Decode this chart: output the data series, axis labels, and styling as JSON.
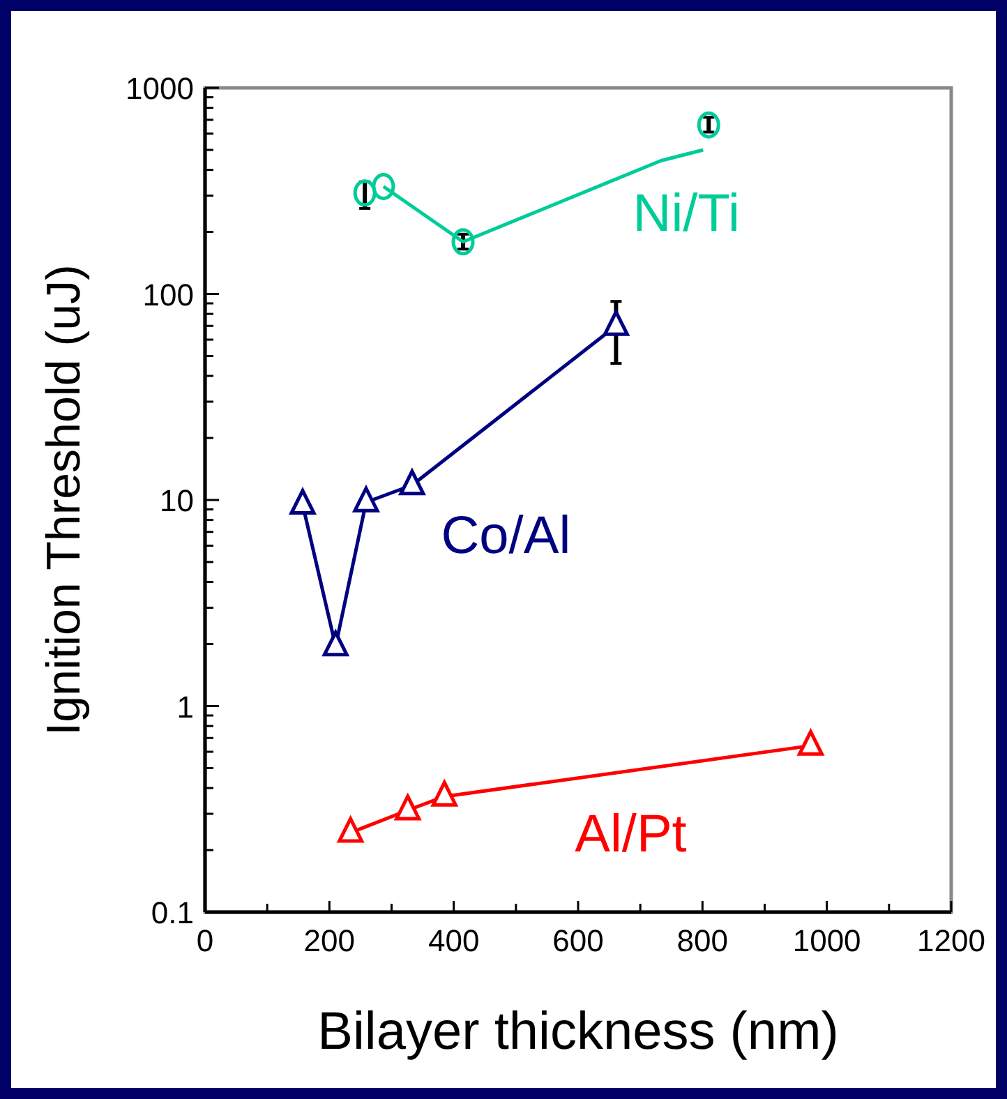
{
  "chart_data": {
    "type": "line",
    "xlabel": "Bilayer thickness (nm)",
    "ylabel": "Ignition Threshold (uJ)",
    "log": "y",
    "xlim": [
      0,
      1200
    ],
    "ylim": [
      0.1,
      1000
    ],
    "xticks": [
      0,
      {
        "value": 100,
        "label": null
      },
      200,
      {
        "value": 300,
        "label": null
      },
      400,
      {
        "value": 500,
        "label": null
      },
      600,
      {
        "value": 700,
        "label": null
      },
      800,
      {
        "value": 900,
        "label": null
      },
      1000,
      {
        "value": 1100,
        "label": null
      },
      1200
    ],
    "yticks": [
      0.1,
      {
        "value": 0.2,
        "label": null
      },
      {
        "value": 0.3,
        "label": null
      },
      {
        "value": 0.4,
        "label": null
      },
      {
        "value": 0.5,
        "label": null
      },
      {
        "value": 0.6,
        "label": null
      },
      {
        "value": 0.7,
        "label": null
      },
      {
        "value": 0.8,
        "label": null
      },
      {
        "value": 0.9,
        "label": null
      },
      1,
      {
        "value": 2,
        "label": null
      },
      {
        "value": 3,
        "label": null
      },
      {
        "value": 4,
        "label": null
      },
      {
        "value": 5,
        "label": null
      },
      {
        "value": 6,
        "label": null
      },
      {
        "value": 7,
        "label": null
      },
      {
        "value": 8,
        "label": null
      },
      {
        "value": 9,
        "label": null
      },
      10,
      {
        "value": 20,
        "label": null
      },
      {
        "value": 30,
        "label": null
      },
      {
        "value": 40,
        "label": null
      },
      {
        "value": 50,
        "label": null
      },
      {
        "value": 60,
        "label": null
      },
      {
        "value": 70,
        "label": null
      },
      {
        "value": 80,
        "label": null
      },
      {
        "value": 90,
        "label": null
      },
      100,
      {
        "value": 200,
        "label": null
      },
      {
        "value": 300,
        "label": null
      },
      {
        "value": 400,
        "label": null
      },
      {
        "value": 500,
        "label": null
      },
      {
        "value": 600,
        "label": null
      },
      {
        "value": 700,
        "label": null
      },
      {
        "value": 800,
        "label": null
      },
      {
        "value": 900,
        "label": null
      },
      1000
    ],
    "series": [
      {
        "type": "scatter",
        "name": "Ni/Ti",
        "marker": "circle",
        "color": "#00cc99",
        "x": [
          257,
          287,
          415,
          810
        ],
        "values": [
          309,
          332,
          179,
          661
        ],
        "errors": [
          [
            260,
            350
          ],
          null,
          [
            165,
            195
          ],
          [
            610,
            720
          ]
        ]
      },
      {
        "name": "Co/Al",
        "marker": "triangle",
        "color": "#000080",
        "x": [
          157,
          210,
          259,
          333,
          661
        ],
        "values": [
          9.5,
          1.95,
          9.75,
          11.8,
          70
        ],
        "errors": [
          null,
          null,
          null,
          null,
          [
            46,
            92
          ]
        ]
      },
      {
        "name": "Al/Pt",
        "marker": "triangle",
        "color": "#ff0000",
        "x": [
          234,
          326,
          385,
          974
        ],
        "values": [
          0.243,
          0.312,
          0.364,
          0.642
        ]
      },
      {
        "type": "line",
        "marker": "none",
        "color": "#00cc99",
        "x": [
          287,
          415,
          733,
          801
        ],
        "values": [
          332,
          179,
          443,
          500
        ]
      }
    ]
  }
}
